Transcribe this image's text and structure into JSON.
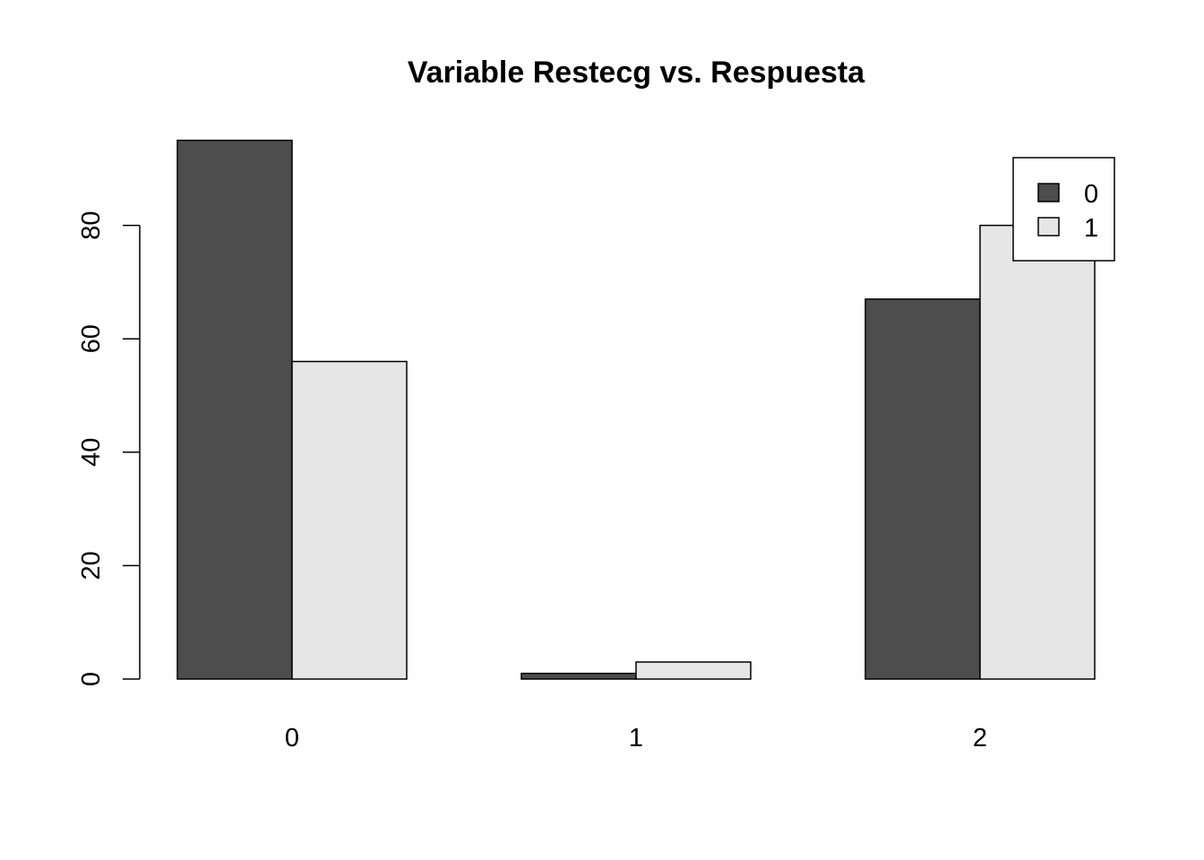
{
  "chart_data": {
    "type": "bar",
    "title": "Variable Restecg vs. Respuesta",
    "xlabel": "",
    "ylabel": "",
    "categories": [
      "0",
      "1",
      "2"
    ],
    "series": [
      {
        "name": "0",
        "values": [
          95,
          1,
          67
        ],
        "color": "#4d4d4d"
      },
      {
        "name": "1",
        "values": [
          56,
          3,
          80
        ],
        "color": "#e6e6e6"
      }
    ],
    "ylim": [
      0,
      95
    ],
    "yticks": [
      0,
      20,
      40,
      60,
      80
    ],
    "ytick_labels": [
      "0",
      "20",
      "40",
      "60",
      "80"
    ],
    "grid": false,
    "legend": "top-right"
  }
}
